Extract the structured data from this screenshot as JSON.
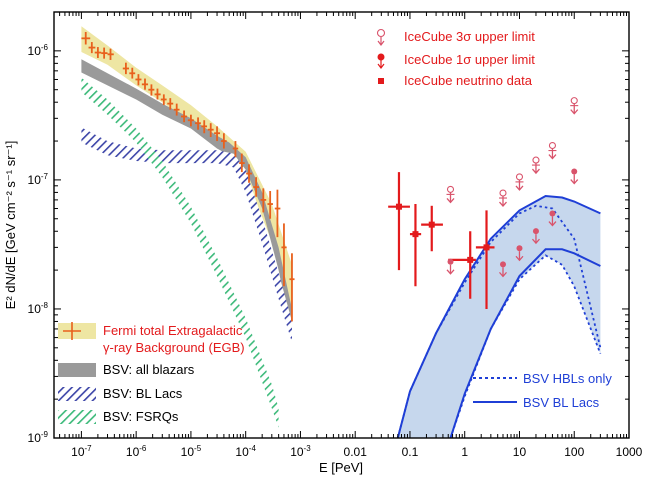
{
  "chart_data": {
    "type": "scatter",
    "xlabel": "E [PeV]",
    "ylabel": "E² dN/dE [GeV cm⁻² s⁻¹ sr⁻¹]",
    "xscale": "log",
    "yscale": "log",
    "xlim": [
      3.16e-08,
      1000
    ],
    "ylim": [
      1e-09,
      2e-06
    ],
    "x_ticks": [
      {
        "v": 1e-07,
        "label": "10",
        "sup": "-7"
      },
      {
        "v": 1e-06,
        "label": "10",
        "sup": "-6"
      },
      {
        "v": 1e-05,
        "label": "10",
        "sup": "-5"
      },
      {
        "v": 0.0001,
        "label": "10",
        "sup": "-4"
      },
      {
        "v": 0.001,
        "label": "10",
        "sup": "-3"
      },
      {
        "v": 0.01,
        "label": "0.01",
        "sup": ""
      },
      {
        "v": 0.1,
        "label": "0.1",
        "sup": ""
      },
      {
        "v": 1,
        "label": "1",
        "sup": ""
      },
      {
        "v": 10,
        "label": "10",
        "sup": ""
      },
      {
        "v": 100,
        "label": "100",
        "sup": ""
      },
      {
        "v": 1000,
        "label": "1000",
        "sup": ""
      }
    ],
    "y_ticks": [
      {
        "v": 1e-06,
        "label": "10",
        "sup": "-6"
      },
      {
        "v": 1e-07,
        "label": "10",
        "sup": "-7"
      },
      {
        "v": 1e-08,
        "label": "10",
        "sup": "-8"
      },
      {
        "v": 1e-09,
        "label": "10",
        "sup": "-9"
      }
    ],
    "colors": {
      "fermi_band": "#eee6a3",
      "fermi_points": "#e8601c",
      "all_blazars": "#9a9a9a",
      "bl_lacs_band": "#3c45a8",
      "fsrqs_band": "#3cba7a",
      "icecube": "#e31a1c",
      "icecube_limit": "#d9536b",
      "bsv_fill": "#c6d7ed",
      "bsv_line": "#1f3fd6",
      "axis": "#000000"
    },
    "series": [
      {
        "name": "Fermi total Extragalactic γ-ray Background (EGB)",
        "kind": "band_with_points",
        "band": [
          {
            "x": 1e-07,
            "lo": 9.8e-07,
            "hi": 1.55e-06
          },
          {
            "x": 3e-07,
            "lo": 7.8e-07,
            "hi": 1.1e-06
          },
          {
            "x": 1e-06,
            "lo": 5.4e-07,
            "hi": 7.4e-07
          },
          {
            "x": 3e-06,
            "lo": 4e-07,
            "hi": 5.4e-07
          },
          {
            "x": 1e-05,
            "lo": 2.8e-07,
            "hi": 3.8e-07
          },
          {
            "x": 3e-05,
            "lo": 1.9e-07,
            "hi": 2.6e-07
          },
          {
            "x": 0.0001,
            "lo": 1.1e-07,
            "hi": 1.65e-07
          },
          {
            "x": 0.0003,
            "lo": 3.3e-08,
            "hi": 6.5e-08
          },
          {
            "x": 0.0007,
            "lo": 1e-08,
            "hi": 2.2e-08
          }
        ],
        "points": [
          {
            "x": 1.2e-07,
            "y": 1.25e-06,
            "xlo": 1e-07,
            "xhi": 1.45e-07,
            "ylo": 1.12e-06,
            "yhi": 1.4e-06
          },
          {
            "x": 1.55e-07,
            "y": 1.06e-06,
            "xlo": 1.35e-07,
            "xhi": 1.8e-07,
            "ylo": 9.6e-07,
            "yhi": 1.17e-06
          },
          {
            "x": 2e-07,
            "y": 9.7e-07,
            "xlo": 1.75e-07,
            "xhi": 2.3e-07,
            "ylo": 8.8e-07,
            "yhi": 1.07e-06
          },
          {
            "x": 2.6e-07,
            "y": 9.6e-07,
            "xlo": 2.3e-07,
            "xhi": 3e-07,
            "ylo": 8.7e-07,
            "yhi": 1.06e-06
          },
          {
            "x": 3.4e-07,
            "y": 9.4e-07,
            "xlo": 3e-07,
            "xhi": 3.9e-07,
            "ylo": 8.5e-07,
            "yhi": 1.04e-06
          },
          {
            "x": 6.5e-07,
            "y": 7.3e-07,
            "xlo": 5.7e-07,
            "xhi": 7.4e-07,
            "ylo": 6.6e-07,
            "yhi": 8.1e-07
          },
          {
            "x": 8.5e-07,
            "y": 6.7e-07,
            "xlo": 7.5e-07,
            "xhi": 9.6e-07,
            "ylo": 6.1e-07,
            "yhi": 7.4e-07
          },
          {
            "x": 1.1e-06,
            "y": 6e-07,
            "xlo": 9.7e-07,
            "xhi": 1.25e-06,
            "ylo": 5.4e-07,
            "yhi": 6.6e-07
          },
          {
            "x": 1.45e-06,
            "y": 5.5e-07,
            "xlo": 1.27e-06,
            "xhi": 1.65e-06,
            "ylo": 5e-07,
            "yhi": 6.1e-07
          },
          {
            "x": 1.9e-06,
            "y": 5e-07,
            "xlo": 1.67e-06,
            "xhi": 2.15e-06,
            "ylo": 4.5e-07,
            "yhi": 5.5e-07
          },
          {
            "x": 2.45e-06,
            "y": 4.6e-07,
            "xlo": 2.17e-06,
            "xhi": 2.8e-06,
            "ylo": 4.2e-07,
            "yhi": 5.1e-07
          },
          {
            "x": 3.2e-06,
            "y": 4.2e-07,
            "xlo": 2.82e-06,
            "xhi": 3.6e-06,
            "ylo": 3.8e-07,
            "yhi": 4.6e-07
          },
          {
            "x": 4.2e-06,
            "y": 3.9e-07,
            "xlo": 3.7e-06,
            "xhi": 4.75e-06,
            "ylo": 3.5e-07,
            "yhi": 4.3e-07
          },
          {
            "x": 5.5e-06,
            "y": 3.5e-07,
            "xlo": 4.85e-06,
            "xhi": 6.2e-06,
            "ylo": 3.15e-07,
            "yhi": 3.9e-07
          },
          {
            "x": 7.5e-06,
            "y": 3.1e-07,
            "xlo": 6.6e-06,
            "xhi": 8.5e-06,
            "ylo": 2.8e-07,
            "yhi": 3.45e-07
          },
          {
            "x": 1e-05,
            "y": 2.9e-07,
            "xlo": 8.8e-06,
            "xhi": 1.13e-05,
            "ylo": 2.6e-07,
            "yhi": 3.2e-07
          },
          {
            "x": 1.35e-05,
            "y": 2.75e-07,
            "xlo": 1.19e-05,
            "xhi": 1.52e-05,
            "ylo": 2.45e-07,
            "yhi": 3.05e-07
          },
          {
            "x": 1.75e-05,
            "y": 2.6e-07,
            "xlo": 1.55e-05,
            "xhi": 1.97e-05,
            "ylo": 2.3e-07,
            "yhi": 2.9e-07
          },
          {
            "x": 2.3e-05,
            "y": 2.45e-07,
            "xlo": 2.03e-05,
            "xhi": 2.6e-05,
            "ylo": 2.15e-07,
            "yhi": 2.75e-07
          },
          {
            "x": 3e-05,
            "y": 2.3e-07,
            "xlo": 2.65e-05,
            "xhi": 3.4e-05,
            "ylo": 2e-07,
            "yhi": 2.6e-07
          },
          {
            "x": 4e-05,
            "y": 2e-07,
            "xlo": 3.55e-05,
            "xhi": 4.5e-05,
            "ylo": 1.75e-07,
            "yhi": 2.3e-07
          },
          {
            "x": 6.5e-05,
            "y": 1.75e-07,
            "xlo": 5.8e-05,
            "xhi": 7.3e-05,
            "ylo": 1.5e-07,
            "yhi": 2e-07
          },
          {
            "x": 8.5e-05,
            "y": 1.35e-07,
            "xlo": 7.6e-05,
            "xhi": 9.6e-05,
            "ylo": 1.15e-07,
            "yhi": 1.6e-07
          },
          {
            "x": 0.000115,
            "y": 1.12e-07,
            "xlo": 0.000102,
            "xhi": 0.00013,
            "ylo": 9.5e-08,
            "yhi": 1.32e-07
          },
          {
            "x": 0.000155,
            "y": 8.8e-08,
            "xlo": 0.000138,
            "xhi": 0.000175,
            "ylo": 7.4e-08,
            "yhi": 1.05e-07
          },
          {
            "x": 0.00021,
            "y": 7e-08,
            "xlo": 0.000187,
            "xhi": 0.000237,
            "ylo": 5.6e-08,
            "yhi": 8.6e-08
          },
          {
            "x": 0.00028,
            "y": 6.5e-08,
            "xlo": 0.00025,
            "xhi": 0.000315,
            "ylo": 5e-08,
            "yhi": 8.2e-08
          },
          {
            "x": 0.00038,
            "y": 6e-08,
            "xlo": 0.00034,
            "xhi": 0.00043,
            "ylo": 3.6e-08,
            "yhi": 8.4e-08
          },
          {
            "x": 0.0005,
            "y": 3e-08,
            "xlo": 0.00045,
            "xhi": 0.00056,
            "ylo": 1.5e-08,
            "yhi": 4.6e-08
          },
          {
            "x": 0.0007,
            "y": 1.7e-08,
            "xlo": 0.00063,
            "xhi": 0.00078,
            "ylo": 8e-09,
            "yhi": 2.7e-08
          }
        ]
      },
      {
        "name": "BSV: all blazars",
        "kind": "band",
        "band": [
          {
            "x": 1e-07,
            "lo": 6.8e-07,
            "hi": 8.6e-07
          },
          {
            "x": 1e-06,
            "lo": 4.2e-07,
            "hi": 5.1e-07
          },
          {
            "x": 3e-06,
            "lo": 3.2e-07,
            "hi": 3.9e-07
          },
          {
            "x": 1e-05,
            "lo": 2.5e-07,
            "hi": 3e-07
          },
          {
            "x": 3e-05,
            "lo": 1.75e-07,
            "hi": 2.2e-07
          },
          {
            "x": 5e-05,
            "lo": 1.55e-07,
            "hi": 1.95e-07
          },
          {
            "x": 0.0001,
            "lo": 1.2e-07,
            "hi": 1.5e-07
          },
          {
            "x": 0.0002,
            "lo": 6e-08,
            "hi": 8e-08
          },
          {
            "x": 0.0004,
            "lo": 2e-08,
            "hi": 3e-08
          },
          {
            "x": 0.0007,
            "lo": 6e-09,
            "hi": 1e-08
          }
        ]
      },
      {
        "name": "BSV: BL Lacs",
        "kind": "hatched_band",
        "band": [
          {
            "x": 1e-07,
            "lo": 1.95e-07,
            "hi": 2.55e-07
          },
          {
            "x": 3e-07,
            "lo": 1.55e-07,
            "hi": 2e-07
          },
          {
            "x": 1e-06,
            "lo": 1.4e-07,
            "hi": 1.75e-07
          },
          {
            "x": 3e-06,
            "lo": 1.35e-07,
            "hi": 1.7e-07
          },
          {
            "x": 1e-05,
            "lo": 1.35e-07,
            "hi": 1.7e-07
          },
          {
            "x": 3e-05,
            "lo": 1.35e-07,
            "hi": 1.7e-07
          },
          {
            "x": 6e-05,
            "lo": 1.25e-07,
            "hi": 1.6e-07
          },
          {
            "x": 0.0001,
            "lo": 8e-08,
            "hi": 1.2e-07
          },
          {
            "x": 0.0002,
            "lo": 3.2e-08,
            "hi": 5e-08
          },
          {
            "x": 0.0004,
            "lo": 1.2e-08,
            "hi": 1.9e-08
          },
          {
            "x": 0.0007,
            "lo": 5.5e-09,
            "hi": 8e-09
          }
        ]
      },
      {
        "name": "BSV: FSRQs",
        "kind": "hatched_band",
        "band": [
          {
            "x": 1e-07,
            "lo": 4.8e-07,
            "hi": 6.2e-07
          },
          {
            "x": 3e-07,
            "lo": 3.2e-07,
            "hi": 4.2e-07
          },
          {
            "x": 1e-06,
            "lo": 1.95e-07,
            "hi": 2.5e-07
          },
          {
            "x": 3e-06,
            "lo": 1.05e-07,
            "hi": 1.4e-07
          },
          {
            "x": 1e-05,
            "lo": 4.6e-08,
            "hi": 6.2e-08
          },
          {
            "x": 3e-05,
            "lo": 1.8e-08,
            "hi": 2.5e-08
          },
          {
            "x": 0.0001,
            "lo": 6e-09,
            "hi": 8.5e-09
          },
          {
            "x": 0.0003,
            "lo": 1.7e-09,
            "hi": 2.6e-09
          },
          {
            "x": 0.0004,
            "lo": 1.2e-09,
            "hi": 1.7e-09
          }
        ]
      },
      {
        "name": "IceCube neutrino data",
        "kind": "errorbar_points",
        "points": [
          {
            "x": 0.063,
            "y": 6.2e-08,
            "xlo": 0.04,
            "xhi": 0.1,
            "ylo": 2e-08,
            "yhi": 1.15e-07
          },
          {
            "x": 0.126,
            "y": 3.8e-08,
            "xlo": 0.1,
            "xhi": 0.16,
            "ylo": 1.5e-08,
            "yhi": 6.5e-08
          },
          {
            "x": 0.25,
            "y": 4.5e-08,
            "xlo": 0.16,
            "xhi": 0.4,
            "ylo": 2.8e-08,
            "yhi": 6.3e-08
          },
          {
            "x": 1.26,
            "y": 2.4e-08,
            "xlo": 0.5,
            "xhi": 1.6,
            "ylo": 1.2e-08,
            "yhi": 4e-08
          },
          {
            "x": 2.5,
            "y": 3e-08,
            "xlo": 1.6,
            "xhi": 3.5,
            "ylo": 1e-08,
            "yhi": 5.8e-08
          }
        ]
      },
      {
        "name": "IceCube 1σ upper limit",
        "kind": "upper_limit_dot",
        "points": [
          {
            "x": 0.55,
            "y": 2.2e-08
          },
          {
            "x": 5.0,
            "y": 2.1e-08
          },
          {
            "x": 10.0,
            "y": 2.8e-08
          },
          {
            "x": 20.0,
            "y": 3.8e-08
          },
          {
            "x": 40.0,
            "y": 5.2e-08
          },
          {
            "x": 100.0,
            "y": 1.1e-07
          }
        ]
      },
      {
        "name": "IceCube 3σ upper limit",
        "kind": "upper_limit_open",
        "points": [
          {
            "x": 0.55,
            "y": 8e-08
          },
          {
            "x": 5.0,
            "y": 7.5e-08
          },
          {
            "x": 10.0,
            "y": 1e-07
          },
          {
            "x": 20.0,
            "y": 1.35e-07
          },
          {
            "x": 40.0,
            "y": 1.75e-07
          },
          {
            "x": 100.0,
            "y": 3.9e-07
          }
        ]
      },
      {
        "name": "BSV BL Lacs",
        "kind": "line_solid",
        "upper": [
          {
            "x": 0.06,
            "y": 1e-09
          },
          {
            "x": 0.1,
            "y": 2.3e-09
          },
          {
            "x": 0.3,
            "y": 6.5e-09
          },
          {
            "x": 1.0,
            "y": 1.7e-08
          },
          {
            "x": 3.0,
            "y": 3.5e-08
          },
          {
            "x": 10.0,
            "y": 5.8e-08
          },
          {
            "x": 30.0,
            "y": 7.5e-08
          },
          {
            "x": 60.0,
            "y": 7.3e-08
          },
          {
            "x": 100.0,
            "y": 6.8e-08
          },
          {
            "x": 300.0,
            "y": 5.5e-08
          }
        ],
        "lower": [
          {
            "x": 0.55,
            "y": 1e-09
          },
          {
            "x": 1.0,
            "y": 2.2e-09
          },
          {
            "x": 3.0,
            "y": 7e-09
          },
          {
            "x": 10.0,
            "y": 1.8e-08
          },
          {
            "x": 30.0,
            "y": 2.9e-08
          },
          {
            "x": 60.0,
            "y": 2.9e-08
          },
          {
            "x": 100.0,
            "y": 2.7e-08
          },
          {
            "x": 300.0,
            "y": 2.15e-08
          }
        ]
      },
      {
        "name": "BSV HBLs only",
        "kind": "line_dotted",
        "upper": [
          {
            "x": 0.06,
            "y": 1e-09
          },
          {
            "x": 0.1,
            "y": 2.3e-09
          },
          {
            "x": 0.3,
            "y": 6.5e-09
          },
          {
            "x": 1.0,
            "y": 1.6e-08
          },
          {
            "x": 3.0,
            "y": 3.3e-08
          },
          {
            "x": 10.0,
            "y": 5.5e-08
          },
          {
            "x": 20.0,
            "y": 6.3e-08
          },
          {
            "x": 40.0,
            "y": 6e-08
          },
          {
            "x": 100.0,
            "y": 3.5e-08
          },
          {
            "x": 300.0,
            "y": 5e-09
          }
        ],
        "lower": [
          {
            "x": 0.55,
            "y": 1e-09
          },
          {
            "x": 1.0,
            "y": 2.1e-09
          },
          {
            "x": 3.0,
            "y": 7e-09
          },
          {
            "x": 10.0,
            "y": 1.7e-08
          },
          {
            "x": 30.0,
            "y": 2.6e-08
          },
          {
            "x": 60.0,
            "y": 2.2e-08
          },
          {
            "x": 100.0,
            "y": 1.5e-08
          },
          {
            "x": 300.0,
            "y": 4.5e-09
          }
        ]
      }
    ],
    "legend_left": {
      "position": "bottom-left",
      "items": [
        {
          "label": "Fermi total Extragalactic",
          "label2": "γ-ray Background (EGB)",
          "color": "#e31a1c",
          "swatch": "fermi"
        },
        {
          "label": "BSV: all blazars",
          "color": "#000000",
          "swatch": "grey"
        },
        {
          "label": "BSV: BL Lacs",
          "color": "#000000",
          "swatch": "blue_hatch"
        },
        {
          "label": "BSV: FSRQs",
          "color": "#000000",
          "swatch": "green_hatch"
        }
      ]
    },
    "legend_top": {
      "position": "top-right",
      "items": [
        {
          "label": "IceCube 3σ upper limit",
          "swatch": "ul_open"
        },
        {
          "label": "IceCube 1σ upper limit",
          "swatch": "ul_dot"
        },
        {
          "label": "IceCube neutrino data",
          "swatch": "square"
        }
      ]
    },
    "legend_bottom": {
      "position": "bottom-right",
      "items": [
        {
          "label": "BSV HBLs only",
          "swatch": "dotted"
        },
        {
          "label": "BSV BL Lacs",
          "swatch": "solid"
        }
      ]
    }
  }
}
